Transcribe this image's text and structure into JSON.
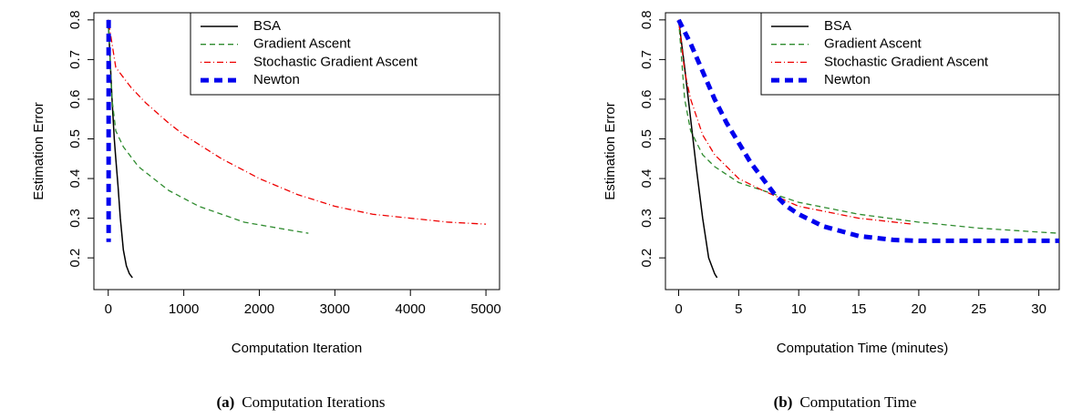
{
  "chart_data": [
    {
      "type": "line",
      "xlabel": "Computation Iteration",
      "ylabel": "Estimation Error",
      "caption_label": "(a)",
      "caption": "Computation Iterations",
      "xlim": [
        -190,
        5180
      ],
      "ylim": [
        0.12,
        0.818
      ],
      "xticks": [
        0,
        1000,
        2000,
        3000,
        4000,
        5000
      ],
      "yticks": [
        0.2,
        0.3,
        0.4,
        0.5,
        0.6,
        0.7,
        0.8
      ],
      "legend": "top-right",
      "series": [
        {
          "name": "BSA",
          "color": "#000000",
          "linestyle": "solid",
          "x": [
            0,
            20,
            50,
            80,
            100,
            130,
            160,
            200,
            240,
            280,
            320
          ],
          "values": [
            0.8,
            0.72,
            0.6,
            0.5,
            0.45,
            0.38,
            0.3,
            0.22,
            0.18,
            0.16,
            0.15
          ]
        },
        {
          "name": "Gradient Ascent",
          "color": "#2e8b2e",
          "linestyle": "dashed",
          "x": [
            0,
            50,
            100,
            200,
            400,
            600,
            800,
            1000,
            1200,
            1500,
            1800,
            2100,
            2400,
            2650
          ],
          "values": [
            0.8,
            0.6,
            0.52,
            0.48,
            0.43,
            0.4,
            0.37,
            0.35,
            0.33,
            0.31,
            0.29,
            0.28,
            0.27,
            0.262
          ]
        },
        {
          "name": "Stochastic Gradient Ascent",
          "color": "#ee0000",
          "linestyle": "dotdash",
          "x": [
            0,
            100,
            300,
            500,
            800,
            1000,
            1500,
            2000,
            2500,
            3000,
            3500,
            4000,
            4500,
            5000
          ],
          "values": [
            0.8,
            0.68,
            0.63,
            0.59,
            0.54,
            0.51,
            0.45,
            0.4,
            0.36,
            0.33,
            0.31,
            0.3,
            0.29,
            0.285
          ]
        },
        {
          "name": "Newton",
          "color": "#0000ee",
          "linestyle": "heavy-dashed",
          "x": [
            5,
            5,
            5,
            5,
            5
          ],
          "values": [
            0.8,
            0.7,
            0.5,
            0.35,
            0.24
          ]
        }
      ]
    },
    {
      "type": "line",
      "xlabel": "Computation Time (minutes)",
      "ylabel": "Estimation Error",
      "caption_label": "(b)",
      "caption": "Computation Time",
      "xlim": [
        -1.1,
        31.7
      ],
      "ylim": [
        0.12,
        0.818
      ],
      "xticks": [
        0,
        5,
        10,
        15,
        20,
        25,
        30
      ],
      "yticks": [
        0.2,
        0.3,
        0.4,
        0.5,
        0.6,
        0.7,
        0.8
      ],
      "legend": "top-right",
      "series": [
        {
          "name": "BSA",
          "color": "#000000",
          "linestyle": "solid",
          "x": [
            0,
            0.5,
            1,
            1.5,
            2,
            2.5,
            3,
            3.2
          ],
          "values": [
            0.8,
            0.68,
            0.55,
            0.42,
            0.3,
            0.2,
            0.16,
            0.15
          ]
        },
        {
          "name": "Gradient Ascent",
          "color": "#2e8b2e",
          "linestyle": "dashed",
          "x": [
            0,
            0.5,
            1,
            2,
            3,
            5,
            7,
            10,
            15,
            20,
            25,
            30,
            31.7
          ],
          "values": [
            0.8,
            0.6,
            0.52,
            0.46,
            0.43,
            0.39,
            0.37,
            0.34,
            0.31,
            0.29,
            0.275,
            0.265,
            0.262
          ]
        },
        {
          "name": "Stochastic Gradient Ascent",
          "color": "#ee0000",
          "linestyle": "dotdash",
          "x": [
            0,
            0.5,
            1,
            2,
            3,
            5,
            7,
            10,
            15,
            19.5
          ],
          "values": [
            0.8,
            0.67,
            0.6,
            0.51,
            0.46,
            0.4,
            0.37,
            0.33,
            0.3,
            0.285
          ]
        },
        {
          "name": "Newton",
          "color": "#0000ee",
          "linestyle": "heavy-dashed",
          "x": [
            0,
            1,
            2,
            3,
            4,
            5,
            6,
            7,
            8,
            9,
            10,
            12,
            15,
            18,
            20,
            25,
            30,
            31.7
          ],
          "values": [
            0.8,
            0.74,
            0.67,
            0.6,
            0.54,
            0.49,
            0.44,
            0.4,
            0.36,
            0.33,
            0.31,
            0.28,
            0.255,
            0.245,
            0.243,
            0.243,
            0.243,
            0.243
          ]
        }
      ]
    }
  ]
}
